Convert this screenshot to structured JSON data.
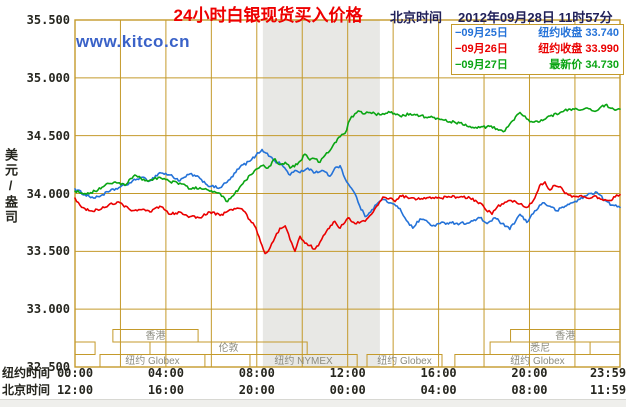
{
  "header": {
    "timezone_label": "北京时间",
    "datetime": "2012年09月28日 11时57分"
  },
  "watermark": "www.kitco.cn",
  "colors": {
    "title": "#ee0000",
    "datetime": "#21215a",
    "watermark": "#3a62c8",
    "grid": "#c49a2b",
    "band": "#e8e8e5",
    "session_label": "#8c8c80",
    "tick_text": "#26261f"
  },
  "chart_data": {
    "type": "line",
    "title": "24小时白银现货买入价格",
    "ylabel": "美元/盎司",
    "ylim": [
      32.5,
      35.5
    ],
    "grid": true,
    "legend_position": "top-right",
    "y_ticks": [
      {
        "value": 35.5,
        "label": "35.500"
      },
      {
        "value": 35.0,
        "label": "35.000"
      },
      {
        "value": 34.5,
        "label": "34.500"
      },
      {
        "value": 34.0,
        "label": "34.000"
      },
      {
        "value": 33.5,
        "label": "33.500"
      },
      {
        "value": 33.0,
        "label": "33.000"
      },
      {
        "value": 32.5,
        "label": "32.500"
      }
    ],
    "x_axis_rows": {
      "ny": "纽约时间",
      "bj": "北京时间"
    },
    "x_ticks": [
      {
        "minute": 0,
        "ny": "00:00",
        "bj": "12:00"
      },
      {
        "minute": 240,
        "ny": "04:00",
        "bj": "16:00"
      },
      {
        "minute": 480,
        "ny": "08:00",
        "bj": "20:00"
      },
      {
        "minute": 720,
        "ny": "12:00",
        "bj": "00:00"
      },
      {
        "minute": 960,
        "ny": "16:00",
        "bj": "04:00"
      },
      {
        "minute": 1200,
        "ny": "20:00",
        "bj": "08:00"
      },
      {
        "minute": 1439,
        "ny": "23:59",
        "bj": "11:59"
      }
    ],
    "nymex_band_minutes": [
      496,
      805
    ],
    "sessions": [
      {
        "row": 0,
        "boxes": [
          {
            "label": "香港",
            "from": 100,
            "to": 325
          },
          {
            "label": "香港",
            "from": 1150,
            "to": 1439
          }
        ]
      },
      {
        "row": 1,
        "boxes": [
          {
            "label": "",
            "from": 0,
            "to": 53
          },
          {
            "label": "伦敦",
            "from": 198,
            "to": 613
          },
          {
            "label": "悉尼",
            "from": 1096,
            "to": 1360
          }
        ]
      },
      {
        "row": 2,
        "boxes": [
          {
            "label": "纽约 Globex",
            "from": 66,
            "to": 343
          },
          {
            "label": "纽约 NYMEX",
            "from": 462,
            "to": 745
          },
          {
            "label": "纽约 Globex",
            "from": 771,
            "to": 969
          },
          {
            "label": "纽约 Globex",
            "from": 1003,
            "to": 1439
          }
        ]
      }
    ],
    "series": [
      {
        "name": "09月25日",
        "legend_desc": "纽约收盘",
        "legend_value": "33.740",
        "color": "#2472d8",
        "points": [
          [
            0,
            34.04
          ],
          [
            26,
            33.99
          ],
          [
            53,
            33.96
          ],
          [
            92,
            34.02
          ],
          [
            132,
            34.07
          ],
          [
            172,
            34.14
          ],
          [
            198,
            34.11
          ],
          [
            224,
            34.18
          ],
          [
            251,
            34.16
          ],
          [
            277,
            34.11
          ],
          [
            304,
            34.17
          ],
          [
            330,
            34.13
          ],
          [
            356,
            34.06
          ],
          [
            383,
            34.05
          ],
          [
            409,
            34.12
          ],
          [
            436,
            34.23
          ],
          [
            462,
            34.28
          ],
          [
            478,
            34.33
          ],
          [
            494,
            34.38
          ],
          [
            504,
            34.35
          ],
          [
            515,
            34.32
          ],
          [
            528,
            34.28
          ],
          [
            546,
            34.25
          ],
          [
            568,
            34.16
          ],
          [
            581,
            34.2
          ],
          [
            594,
            34.18
          ],
          [
            615,
            34.22
          ],
          [
            634,
            34.18
          ],
          [
            652,
            34.2
          ],
          [
            673,
            34.15
          ],
          [
            686,
            34.22
          ],
          [
            700,
            34.24
          ],
          [
            713,
            34.13
          ],
          [
            726,
            34.06
          ],
          [
            739,
            34.0
          ],
          [
            752,
            33.89
          ],
          [
            766,
            33.8
          ],
          [
            784,
            33.86
          ],
          [
            800,
            33.92
          ],
          [
            813,
            33.95
          ],
          [
            832,
            33.92
          ],
          [
            858,
            33.87
          ],
          [
            871,
            33.79
          ],
          [
            892,
            33.7
          ],
          [
            911,
            33.78
          ],
          [
            924,
            33.77
          ],
          [
            943,
            33.72
          ],
          [
            964,
            33.74
          ],
          [
            990,
            33.75
          ],
          [
            1016,
            33.74
          ],
          [
            1043,
            33.75
          ],
          [
            1069,
            33.79
          ],
          [
            1088,
            33.74
          ],
          [
            1109,
            33.79
          ],
          [
            1127,
            33.74
          ],
          [
            1148,
            33.69
          ],
          [
            1175,
            33.82
          ],
          [
            1193,
            33.75
          ],
          [
            1214,
            33.85
          ],
          [
            1235,
            33.92
          ],
          [
            1254,
            33.89
          ],
          [
            1272,
            33.85
          ],
          [
            1294,
            33.89
          ],
          [
            1312,
            33.92
          ],
          [
            1333,
            33.95
          ],
          [
            1360,
            34.0
          ],
          [
            1378,
            34.01
          ],
          [
            1399,
            33.94
          ],
          [
            1417,
            33.9
          ],
          [
            1439,
            33.88
          ]
        ]
      },
      {
        "name": "09月26日",
        "legend_desc": "纽约收盘",
        "legend_value": "33.990",
        "color": "#ea0000",
        "points": [
          [
            0,
            33.96
          ],
          [
            13,
            33.9
          ],
          [
            26,
            33.87
          ],
          [
            40,
            33.85
          ],
          [
            66,
            33.86
          ],
          [
            92,
            33.91
          ],
          [
            119,
            33.92
          ],
          [
            145,
            33.86
          ],
          [
            172,
            33.86
          ],
          [
            198,
            33.84
          ],
          [
            224,
            33.89
          ],
          [
            251,
            33.82
          ],
          [
            277,
            33.84
          ],
          [
            304,
            33.8
          ],
          [
            330,
            33.79
          ],
          [
            356,
            33.84
          ],
          [
            383,
            33.81
          ],
          [
            409,
            33.86
          ],
          [
            436,
            33.87
          ],
          [
            449,
            33.84
          ],
          [
            462,
            33.77
          ],
          [
            478,
            33.7
          ],
          [
            494,
            33.55
          ],
          [
            502,
            33.48
          ],
          [
            515,
            33.53
          ],
          [
            528,
            33.62
          ],
          [
            541,
            33.7
          ],
          [
            555,
            33.72
          ],
          [
            568,
            33.6
          ],
          [
            581,
            33.5
          ],
          [
            594,
            33.63
          ],
          [
            607,
            33.57
          ],
          [
            620,
            33.55
          ],
          [
            634,
            33.52
          ],
          [
            647,
            33.58
          ],
          [
            660,
            33.65
          ],
          [
            686,
            33.76
          ],
          [
            700,
            33.7
          ],
          [
            721,
            33.79
          ],
          [
            739,
            33.74
          ],
          [
            766,
            33.76
          ],
          [
            779,
            33.81
          ],
          [
            800,
            33.9
          ],
          [
            813,
            33.97
          ],
          [
            832,
            33.96
          ],
          [
            845,
            33.93
          ],
          [
            858,
            33.98
          ],
          [
            885,
            33.96
          ],
          [
            911,
            33.95
          ],
          [
            937,
            33.97
          ],
          [
            964,
            33.96
          ],
          [
            990,
            33.97
          ],
          [
            1016,
            33.97
          ],
          [
            1043,
            33.96
          ],
          [
            1069,
            33.92
          ],
          [
            1082,
            33.87
          ],
          [
            1101,
            33.82
          ],
          [
            1114,
            33.88
          ],
          [
            1127,
            33.91
          ],
          [
            1148,
            33.94
          ],
          [
            1175,
            33.91
          ],
          [
            1193,
            33.88
          ],
          [
            1214,
            33.96
          ],
          [
            1227,
            34.07
          ],
          [
            1241,
            34.1
          ],
          [
            1254,
            34.03
          ],
          [
            1267,
            34.07
          ],
          [
            1281,
            34.06
          ],
          [
            1294,
            34.0
          ],
          [
            1312,
            33.97
          ],
          [
            1333,
            33.98
          ],
          [
            1352,
            33.96
          ],
          [
            1373,
            33.98
          ],
          [
            1391,
            33.95
          ],
          [
            1412,
            33.94
          ],
          [
            1426,
            33.97
          ],
          [
            1439,
            33.99
          ]
        ]
      },
      {
        "name": "09月27日",
        "legend_desc": "最新价",
        "legend_value": "34.730",
        "color": "#0aa513",
        "points": [
          [
            0,
            34.02
          ],
          [
            26,
            34.0
          ],
          [
            53,
            34.02
          ],
          [
            79,
            34.07
          ],
          [
            106,
            34.1
          ],
          [
            132,
            34.07
          ],
          [
            158,
            34.16
          ],
          [
            185,
            34.11
          ],
          [
            224,
            34.14
          ],
          [
            251,
            34.1
          ],
          [
            277,
            34.09
          ],
          [
            304,
            34.04
          ],
          [
            330,
            34.05
          ],
          [
            356,
            34.02
          ],
          [
            383,
            34.0
          ],
          [
            403,
            33.93
          ],
          [
            422,
            34.0
          ],
          [
            436,
            34.06
          ],
          [
            462,
            34.16
          ],
          [
            478,
            34.21
          ],
          [
            494,
            34.24
          ],
          [
            509,
            34.22
          ],
          [
            528,
            34.3
          ],
          [
            541,
            34.25
          ],
          [
            555,
            34.27
          ],
          [
            568,
            34.22
          ],
          [
            587,
            34.25
          ],
          [
            607,
            34.34
          ],
          [
            620,
            34.29
          ],
          [
            634,
            34.3
          ],
          [
            647,
            34.27
          ],
          [
            660,
            34.33
          ],
          [
            673,
            34.37
          ],
          [
            686,
            34.44
          ],
          [
            700,
            34.49
          ],
          [
            713,
            34.52
          ],
          [
            726,
            34.64
          ],
          [
            739,
            34.69
          ],
          [
            752,
            34.71
          ],
          [
            766,
            34.69
          ],
          [
            779,
            34.7
          ],
          [
            792,
            34.69
          ],
          [
            805,
            34.68
          ],
          [
            832,
            34.7
          ],
          [
            858,
            34.67
          ],
          [
            885,
            34.69
          ],
          [
            911,
            34.67
          ],
          [
            937,
            34.66
          ],
          [
            964,
            34.64
          ],
          [
            990,
            34.62
          ],
          [
            1016,
            34.61
          ],
          [
            1043,
            34.58
          ],
          [
            1069,
            34.57
          ],
          [
            1095,
            34.58
          ],
          [
            1122,
            34.55
          ],
          [
            1135,
            34.54
          ],
          [
            1148,
            34.6
          ],
          [
            1175,
            34.7
          ],
          [
            1188,
            34.67
          ],
          [
            1201,
            34.62
          ],
          [
            1227,
            34.62
          ],
          [
            1254,
            34.67
          ],
          [
            1281,
            34.7
          ],
          [
            1307,
            34.73
          ],
          [
            1333,
            34.72
          ],
          [
            1352,
            34.74
          ],
          [
            1373,
            34.71
          ],
          [
            1386,
            34.74
          ],
          [
            1404,
            34.77
          ],
          [
            1412,
            34.74
          ],
          [
            1426,
            34.72
          ],
          [
            1439,
            34.73
          ]
        ]
      }
    ]
  }
}
